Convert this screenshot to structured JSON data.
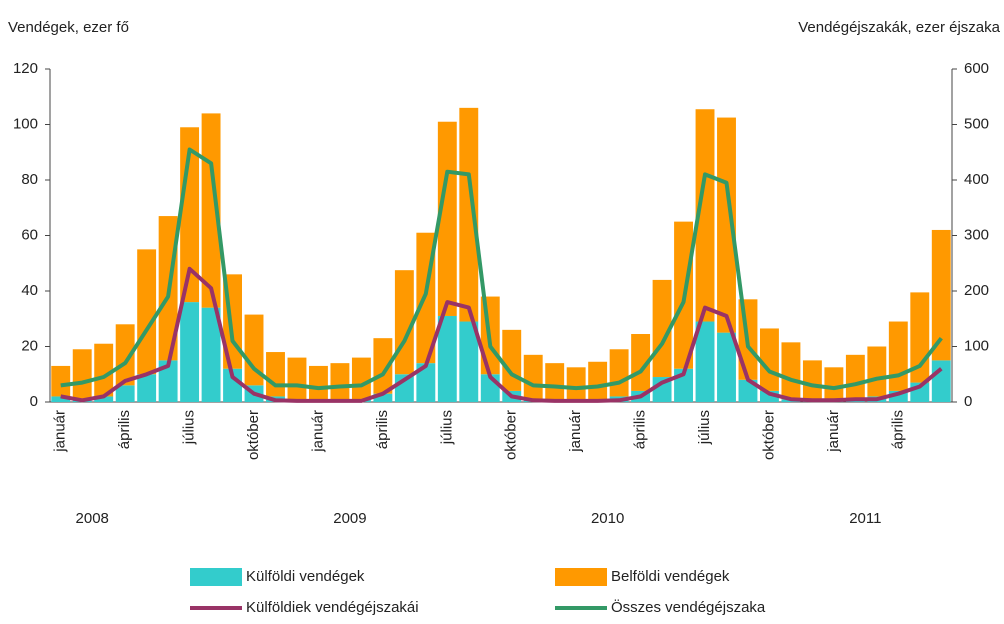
{
  "chart_data": {
    "type": "bar",
    "y_label": "Vendégek, ezer fő",
    "y2_label": "Vendégéjszakák, ezer éjszaka",
    "categories": [
      "január",
      null,
      null,
      "április",
      null,
      null,
      "július",
      null,
      null,
      "október",
      null,
      null,
      "január",
      null,
      null,
      "április",
      null,
      null,
      "július",
      null,
      null,
      "október",
      null,
      null,
      "január",
      null,
      null,
      "április",
      null,
      null,
      "július",
      null,
      null,
      "október",
      null,
      null,
      "január",
      null,
      null,
      "április",
      null,
      null
    ],
    "years": [
      "2008",
      "2009",
      "2010",
      "2011"
    ],
    "ylim": [
      0,
      120
    ],
    "yticks": [
      0,
      20,
      40,
      60,
      80,
      100,
      120
    ],
    "y2lim": [
      0,
      600
    ],
    "y2ticks": [
      0,
      100,
      200,
      300,
      400,
      500,
      600
    ],
    "series": [
      {
        "name": "Külföldi vendégek",
        "color": "#33cccc",
        "stack": true,
        "values": [
          2,
          1,
          2,
          6,
          10,
          15,
          36,
          34,
          12,
          6,
          2,
          1,
          1,
          1,
          1,
          3,
          10,
          14,
          31,
          29,
          10,
          4,
          1,
          1,
          1,
          1,
          2,
          4,
          9,
          12,
          29,
          25,
          8,
          4,
          1,
          1,
          1,
          1,
          2,
          4,
          7,
          15
        ]
      },
      {
        "name": "Belföldi vendégek",
        "color": "#ff9900",
        "stack": true,
        "values": [
          11,
          18,
          19,
          22,
          45,
          52,
          63,
          70,
          34,
          25.5,
          16,
          15,
          12,
          13,
          15,
          20,
          37.5,
          47,
          70,
          77,
          28,
          22,
          16,
          13,
          11.5,
          13.5,
          17,
          20.5,
          35,
          53,
          76.5,
          77.5,
          29,
          22.5,
          20.5,
          14,
          11.5,
          16,
          18,
          25,
          32.5,
          47
        ]
      },
      {
        "name": "Külföldiek vendégéjszakái",
        "color": "#993366",
        "type": "line",
        "axis": "y2",
        "values": [
          10,
          3,
          10,
          38,
          50,
          65,
          240,
          205,
          45,
          15,
          3,
          2,
          2,
          2,
          2,
          15,
          40,
          65,
          180,
          170,
          45,
          10,
          3,
          2,
          2,
          2,
          3,
          10,
          35,
          50,
          170,
          155,
          40,
          15,
          5,
          3,
          3,
          5,
          5,
          15,
          28,
          60
        ]
      },
      {
        "name": "Összes vendégéjszaka",
        "color": "#339966",
        "type": "line",
        "axis": "y2",
        "values": [
          30,
          35,
          45,
          70,
          130,
          190,
          455,
          430,
          110,
          60,
          30,
          30,
          25,
          28,
          30,
          50,
          110,
          195,
          415,
          410,
          100,
          50,
          30,
          28,
          25,
          28,
          35,
          55,
          105,
          180,
          410,
          395,
          100,
          55,
          40,
          30,
          25,
          32,
          42,
          48,
          65,
          115
        ]
      }
    ]
  }
}
